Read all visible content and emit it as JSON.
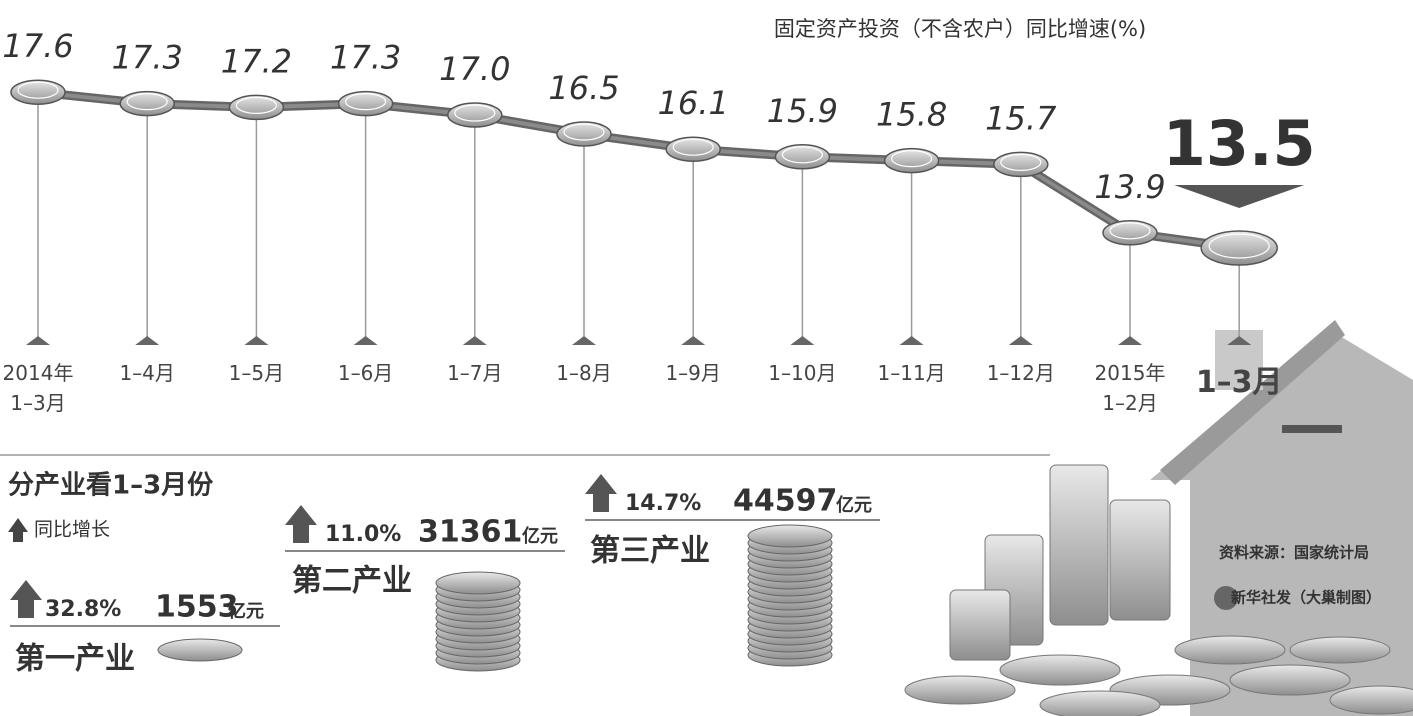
{
  "chart_data": {
    "type": "line",
    "title": "固定资产投资（不含农户）同比增速(%)",
    "categories": [
      "2014年1–3月",
      "1–4月",
      "1–5月",
      "1–6月",
      "1–7月",
      "1–8月",
      "1–9月",
      "1–10月",
      "1–11月",
      "1–12月",
      "2015年1–2月",
      "1–3月"
    ],
    "values": [
      17.6,
      17.3,
      17.2,
      17.3,
      17.0,
      16.5,
      16.1,
      15.9,
      15.8,
      15.7,
      13.9,
      13.5
    ],
    "value_labels": [
      "17.6",
      "17.3",
      "17.2",
      "17.3",
      "17.0",
      "16.5",
      "16.1",
      "15.9",
      "15.8",
      "15.7",
      "13.9",
      "13.5"
    ],
    "color": "#8a8a8a",
    "ylim": [
      12,
      19
    ]
  },
  "industries": {
    "heading": "分产业看1–3月份",
    "legend": "同比增长",
    "items": [
      {
        "name": "第一产业",
        "growth": "32.8%",
        "amount": "1553",
        "unit": "亿元"
      },
      {
        "name": "第二产业",
        "growth": "11.0%",
        "amount": "31361",
        "unit": "亿元"
      },
      {
        "name": "第三产业",
        "growth": "14.7%",
        "amount": "44597",
        "unit": "亿元"
      }
    ]
  },
  "footer": {
    "source": "资料来源：国家统计局",
    "credit": "新华社发（大巢制图）"
  }
}
